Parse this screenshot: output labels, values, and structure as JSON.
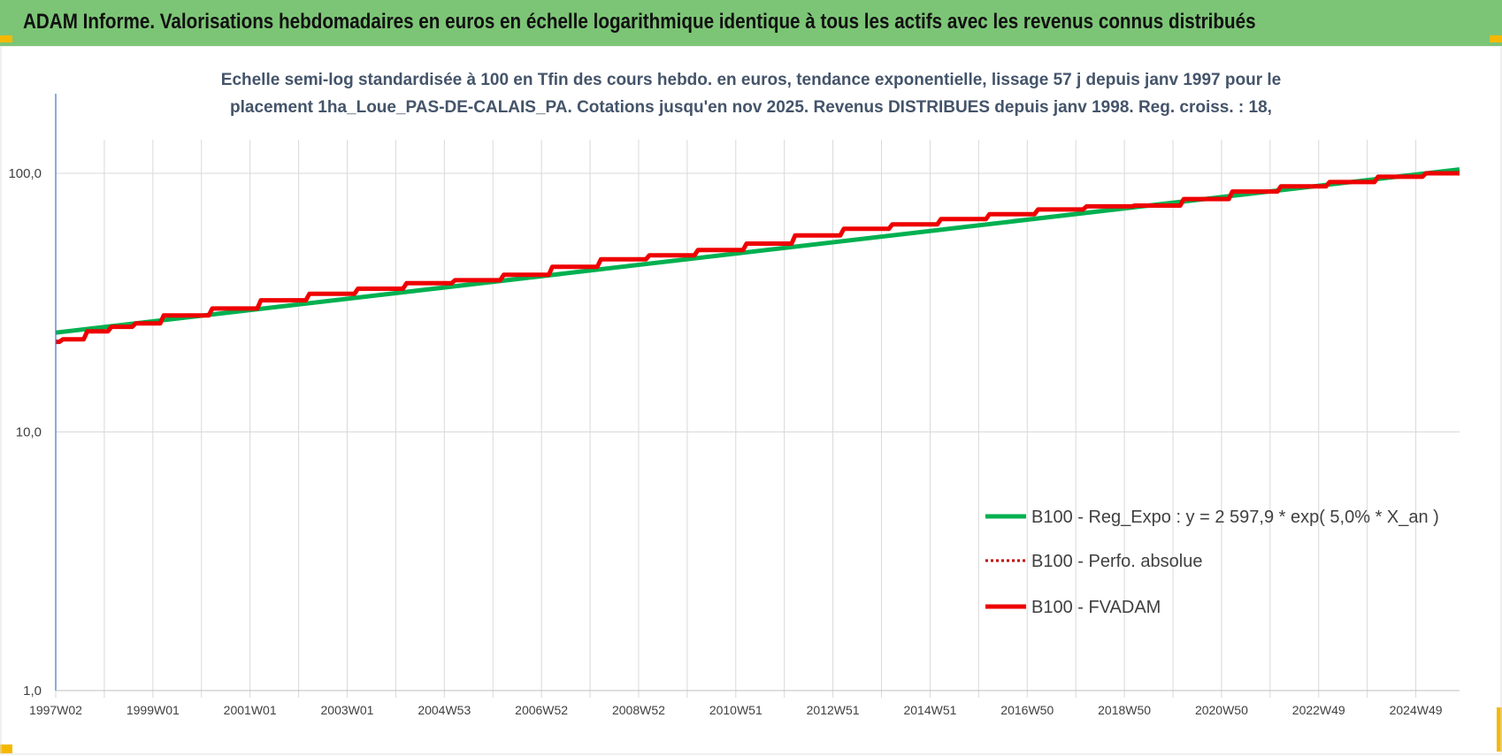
{
  "header": {
    "title": "ADAM Informe. Valorisations hebdomadaires en euros en échelle logarithmique identique à tous les actifs avec les revenus connus distribués"
  },
  "colors": {
    "header_bg": "#7cc576",
    "corner_accent": "#f5b800",
    "reg_expo": "#00b050",
    "fvadam": "#ee0000",
    "perfo": "#c00000",
    "grid": "#d9d9d9",
    "axis": "#4472c4"
  },
  "chart_data": {
    "type": "line",
    "subtitle_lines": [
      "Echelle semi-log standardisée à 100 en Tfin des cours hebdo. en euros, tendance exponentielle, lissage 57 j depuis janv 1997 pour le",
      "placement 1ha_Loue_PAS-DE-CALAIS_PA. Cotations jusqu'en nov 2025. Revenus DISTRIBUES depuis janv 1998. Reg. croiss. : 18,"
    ],
    "y_scale": "log",
    "ylim": [
      1,
      100
    ],
    "y_ticks": [
      {
        "value": 1,
        "label": "1,0"
      },
      {
        "value": 10,
        "label": "10,0"
      },
      {
        "value": 100,
        "label": "100,0"
      }
    ],
    "xlim": [
      1997.0,
      2025.9
    ],
    "x_ticks": [
      {
        "value": 1997.0,
        "label": "1997W02"
      },
      {
        "value": 1999.0,
        "label": "1999W01"
      },
      {
        "value": 2001.0,
        "label": "2001W01"
      },
      {
        "value": 2003.0,
        "label": "2003W01"
      },
      {
        "value": 2005.0,
        "label": "2004W53"
      },
      {
        "value": 2007.0,
        "label": "2006W52"
      },
      {
        "value": 2009.0,
        "label": "2008W52"
      },
      {
        "value": 2011.0,
        "label": "2010W51"
      },
      {
        "value": 2013.0,
        "label": "2012W51"
      },
      {
        "value": 2015.0,
        "label": "2014W51"
      },
      {
        "value": 2017.0,
        "label": "2016W50"
      },
      {
        "value": 2019.0,
        "label": "2018W50"
      },
      {
        "value": 2021.0,
        "label": "2020W50"
      },
      {
        "value": 2023.0,
        "label": "2022W49"
      },
      {
        "value": 2025.0,
        "label": "2024W49"
      }
    ],
    "grid": true,
    "legend_position": "bottom-right",
    "series": [
      {
        "name": "B100 - Reg_Expo : y = 2 597,9 * exp( 5,0% *  X_an )",
        "style": "solid-green",
        "x": [
          1997.0,
          2025.9
        ],
        "y": [
          24.2,
          103.5
        ]
      },
      {
        "name": "B100 - Perfo. absolue",
        "style": "dotted-red",
        "x": [],
        "y": []
      },
      {
        "name": "B100 - FVADAM",
        "style": "solid-red",
        "x": [
          1997.0,
          1997.5,
          1998.0,
          1998.5,
          1999.0,
          2000.0,
          2001.0,
          2002.0,
          2003.0,
          2004.0,
          2005.0,
          2006.0,
          2007.0,
          2008.0,
          2009.0,
          2010.0,
          2011.0,
          2012.0,
          2013.0,
          2014.0,
          2015.0,
          2016.0,
          2017.0,
          2018.0,
          2019.0,
          2020.0,
          2021.0,
          2022.0,
          2023.0,
          2024.0,
          2025.0,
          2025.9
        ],
        "y": [
          22.3,
          22.8,
          24.5,
          25.5,
          26.3,
          28.2,
          30.0,
          32.3,
          34.2,
          35.8,
          37.6,
          38.6,
          40.5,
          43.5,
          46.5,
          48.2,
          50.5,
          53.5,
          57.5,
          61.0,
          63.5,
          66.5,
          69.5,
          72.5,
          74.5,
          75.0,
          79.5,
          85.0,
          89.0,
          92.5,
          97.0,
          100.0
        ]
      }
    ]
  }
}
